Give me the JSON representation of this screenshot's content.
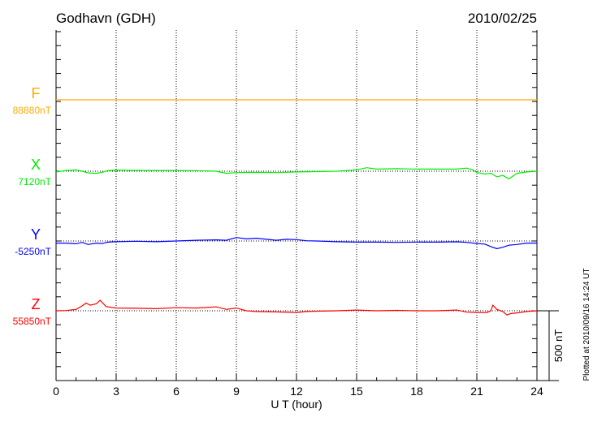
{
  "chart_data": {
    "type": "line",
    "title": "Godhavn (GDH)",
    "date": "2010/02/25",
    "xlabel": "U T (hour)",
    "xlim": [
      0,
      24
    ],
    "xticks": [
      "0",
      "3",
      "6",
      "9",
      "12",
      "15",
      "18",
      "21",
      "24"
    ],
    "grid": "vertical dotted every 3 hours",
    "scale_label": "500 nT",
    "footer": "Plotted at 2010/09/16 14:24 UT",
    "series": [
      {
        "name": "F",
        "baseline_label": "88880nT",
        "color": "#ffaa00",
        "x": [
          0,
          24
        ],
        "y": [
          0,
          0
        ]
      },
      {
        "name": "X",
        "baseline_label": "7120nT",
        "color": "#00ee00",
        "x": [
          0,
          0.5,
          1,
          1.3,
          1.6,
          2,
          2.3,
          2.6,
          3,
          4,
          5,
          6,
          7,
          8,
          8.5,
          9,
          10,
          11,
          12,
          13,
          14,
          15,
          15.5,
          16,
          17,
          18,
          19,
          20,
          20.5,
          20.8,
          21,
          21.4,
          21.7,
          22,
          22.3,
          22.6,
          22.8,
          23,
          23.5,
          24
        ],
        "y": [
          -5,
          5,
          10,
          0,
          -12,
          -15,
          -8,
          5,
          8,
          6,
          5,
          5,
          4,
          0,
          -15,
          -10,
          -8,
          -10,
          -5,
          -3,
          0,
          10,
          25,
          15,
          18,
          15,
          15,
          15,
          22,
          10,
          -10,
          -20,
          -15,
          -40,
          -30,
          -55,
          -35,
          -15,
          -5,
          0
        ]
      },
      {
        "name": "Y",
        "baseline_label": "-5250nT",
        "color": "#0000ff",
        "x": [
          0,
          0.5,
          1,
          1.3,
          1.6,
          2,
          2.3,
          2.6,
          3,
          4,
          5,
          6,
          7,
          8,
          8.5,
          9,
          9.5,
          10,
          11,
          11.5,
          12,
          12.5,
          13,
          14,
          15,
          16,
          17,
          18,
          19,
          20,
          20.5,
          21,
          21.4,
          21.7,
          22,
          22.3,
          22.6,
          23,
          23.5,
          24
        ],
        "y": [
          -15,
          -15,
          -20,
          -10,
          -25,
          -15,
          -18,
          -8,
          -5,
          -2,
          -5,
          0,
          5,
          8,
          5,
          25,
          15,
          20,
          5,
          12,
          10,
          2,
          0,
          -5,
          -8,
          -8,
          -10,
          -8,
          -8,
          -6,
          -10,
          -18,
          -22,
          -40,
          -55,
          -45,
          -30,
          -25,
          -15,
          -15
        ]
      },
      {
        "name": "Z",
        "baseline_label": "55850nT",
        "color": "#ff0000",
        "x": [
          0,
          0.5,
          1,
          1.3,
          1.5,
          1.7,
          2,
          2.2,
          2.5,
          3,
          4,
          5,
          6,
          7,
          8,
          8.5,
          9,
          9.5,
          10,
          11,
          12,
          12.5,
          13,
          14,
          15,
          16,
          17,
          18,
          19,
          20,
          20.5,
          21,
          21.5,
          21.7,
          21.8,
          22,
          22.3,
          22.5,
          22.7,
          23,
          23.5,
          24
        ],
        "y": [
          0,
          2,
          10,
          35,
          55,
          40,
          50,
          75,
          30,
          20,
          18,
          15,
          22,
          20,
          28,
          10,
          20,
          0,
          -5,
          -8,
          -12,
          -5,
          -3,
          0,
          5,
          0,
          3,
          0,
          0,
          5,
          -10,
          -12,
          -12,
          0,
          40,
          10,
          -5,
          -30,
          -20,
          -15,
          -5,
          0
        ]
      }
    ]
  }
}
